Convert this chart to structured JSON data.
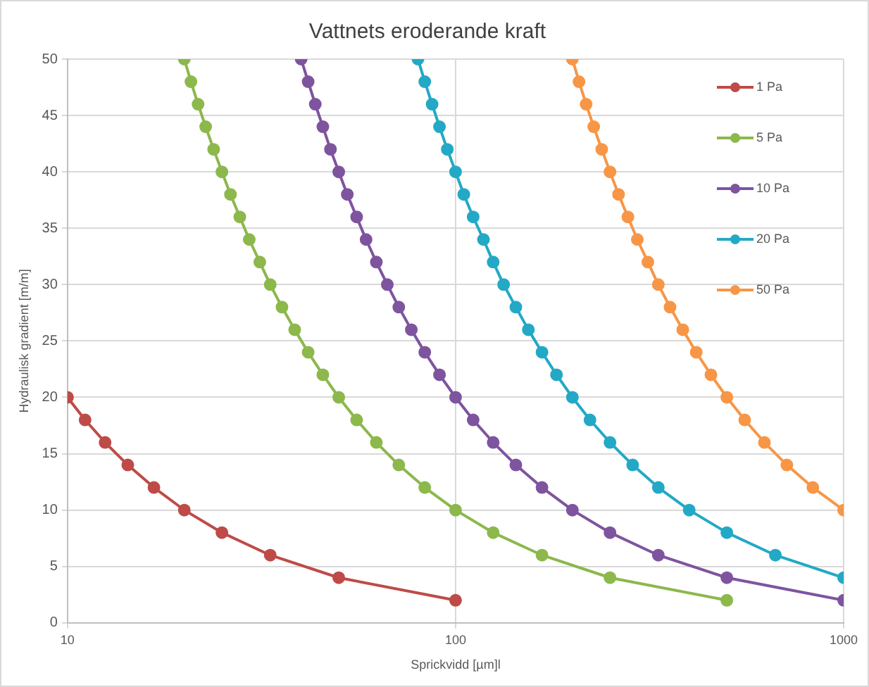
{
  "chart_data": {
    "type": "line",
    "title": "Vattnets eroderande kraft",
    "xlabel": "Sprickvidd [µm]l",
    "ylabel": "Hydraulisk gradient [m/m]",
    "log": "x",
    "xlim": [
      10,
      1000
    ],
    "xticks": [
      10,
      100,
      1000
    ],
    "ylim": [
      0,
      50
    ],
    "yticks": [
      0,
      5,
      10,
      15,
      20,
      25,
      30,
      35,
      40,
      45,
      50
    ],
    "grid": true,
    "legend": "top right",
    "marker": "circle",
    "line_style": "solid",
    "series": [
      {
        "name": "1 Pa",
        "color": "#be4b48",
        "x": [
          10,
          11.1,
          12.5,
          14.3,
          16.7,
          20,
          25,
          33.3,
          50,
          100
        ],
        "values": [
          20,
          18,
          16,
          14,
          12,
          10,
          8,
          6,
          4,
          2
        ]
      },
      {
        "name": "5 Pa",
        "color": "#8cb84c",
        "x": [
          20,
          20.8,
          21.7,
          22.7,
          23.8,
          25,
          26.3,
          27.8,
          29.4,
          31.3,
          33.3,
          35.7,
          38.5,
          41.7,
          45.5,
          50,
          55.6,
          62.5,
          71.4,
          83.3,
          100,
          125,
          167,
          250,
          500
        ],
        "values": [
          50,
          48,
          46,
          44,
          42,
          40,
          38,
          36,
          34,
          32,
          30,
          28,
          26,
          24,
          22,
          20,
          18,
          16,
          14,
          12,
          10,
          8,
          6,
          4,
          2
        ]
      },
      {
        "name": "10 Pa",
        "color": "#7e549f",
        "x": [
          40,
          41.7,
          43.5,
          45.5,
          47.6,
          50,
          52.6,
          55.6,
          58.8,
          62.5,
          66.7,
          71.4,
          76.9,
          83.3,
          90.9,
          100,
          111,
          125,
          143,
          167,
          200,
          250,
          333,
          500,
          1000
        ],
        "values": [
          50,
          48,
          46,
          44,
          42,
          40,
          38,
          36,
          34,
          32,
          30,
          28,
          26,
          24,
          22,
          20,
          18,
          16,
          14,
          12,
          10,
          8,
          6,
          4,
          2
        ]
      },
      {
        "name": "20 Pa",
        "color": "#23a9c6",
        "x": [
          80,
          83.3,
          87,
          90.9,
          95.2,
          100,
          105,
          111,
          118,
          125,
          133,
          143,
          154,
          167,
          182,
          200,
          222,
          250,
          286,
          333,
          400,
          500,
          667,
          1000
        ],
        "values": [
          50,
          48,
          46,
          44,
          42,
          40,
          38,
          36,
          34,
          32,
          30,
          28,
          26,
          24,
          22,
          20,
          18,
          16,
          14,
          12,
          10,
          8,
          6,
          4
        ]
      },
      {
        "name": "50 Pa",
        "color": "#f79646",
        "x": [
          200,
          208,
          217,
          227,
          238,
          250,
          263,
          278,
          294,
          313,
          333,
          357,
          385,
          417,
          455,
          500,
          556,
          625,
          714,
          833,
          1000
        ],
        "values": [
          50,
          48,
          46,
          44,
          42,
          40,
          38,
          36,
          34,
          32,
          30,
          28,
          26,
          24,
          22,
          20,
          18,
          16,
          14,
          12,
          10
        ]
      }
    ]
  }
}
